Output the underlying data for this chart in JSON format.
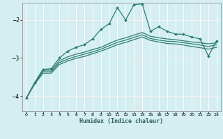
{
  "xlabel": "Humidex (Indice chaleur)",
  "bg_color": "#d4eef1",
  "grid_color": "#b0d8dc",
  "red_line_color": "#cc8888",
  "line_color": "#2e7d6e",
  "xlim": [
    -0.5,
    23.5
  ],
  "ylim": [
    -4.4,
    -1.55
  ],
  "yticks": [
    -4,
    -3,
    -2
  ],
  "xticks": [
    0,
    1,
    2,
    3,
    4,
    5,
    6,
    7,
    8,
    9,
    10,
    11,
    12,
    13,
    14,
    15,
    16,
    17,
    18,
    19,
    20,
    21,
    22,
    23
  ],
  "line1_x": [
    0,
    1,
    2,
    3,
    4,
    5,
    6,
    7,
    8,
    9,
    10,
    11,
    12,
    13,
    14,
    15,
    16,
    17,
    18,
    19,
    20,
    21,
    22,
    23
  ],
  "line1_y": [
    -4.05,
    -3.65,
    -3.3,
    -3.28,
    -3.0,
    -2.82,
    -2.72,
    -2.65,
    -2.5,
    -2.25,
    -2.1,
    -1.68,
    -2.0,
    -1.6,
    -1.58,
    -2.3,
    -2.18,
    -2.3,
    -2.37,
    -2.38,
    -2.45,
    -2.5,
    -2.95,
    -2.55
  ],
  "line2_x": [
    0,
    1,
    2,
    3,
    4,
    5,
    6,
    7,
    8,
    9,
    10,
    11,
    12,
    13,
    14,
    15,
    16,
    17,
    18,
    19,
    20,
    21,
    22,
    23
  ],
  "line2_y": [
    -4.05,
    -3.65,
    -3.32,
    -3.32,
    -3.07,
    -2.97,
    -2.9,
    -2.85,
    -2.78,
    -2.72,
    -2.62,
    -2.53,
    -2.47,
    -2.4,
    -2.33,
    -2.43,
    -2.47,
    -2.5,
    -2.52,
    -2.55,
    -2.58,
    -2.6,
    -2.63,
    -2.6
  ],
  "line3_x": [
    0,
    1,
    2,
    3,
    4,
    5,
    6,
    7,
    8,
    9,
    10,
    11,
    12,
    13,
    14,
    15,
    16,
    17,
    18,
    19,
    20,
    21,
    22,
    23
  ],
  "line3_y": [
    -4.05,
    -3.67,
    -3.36,
    -3.36,
    -3.12,
    -3.03,
    -2.96,
    -2.9,
    -2.84,
    -2.77,
    -2.68,
    -2.59,
    -2.53,
    -2.46,
    -2.39,
    -2.49,
    -2.53,
    -2.56,
    -2.57,
    -2.6,
    -2.63,
    -2.66,
    -2.7,
    -2.65
  ],
  "line4_x": [
    0,
    1,
    2,
    3,
    4,
    5,
    6,
    7,
    8,
    9,
    10,
    11,
    12,
    13,
    14,
    15,
    16,
    17,
    18,
    19,
    20,
    21,
    22,
    23
  ],
  "line4_y": [
    -4.05,
    -3.69,
    -3.4,
    -3.4,
    -3.17,
    -3.08,
    -3.01,
    -2.96,
    -2.89,
    -2.82,
    -2.74,
    -2.65,
    -2.59,
    -2.52,
    -2.45,
    -2.54,
    -2.58,
    -2.62,
    -2.63,
    -2.66,
    -2.7,
    -2.73,
    -2.77,
    -2.72
  ]
}
